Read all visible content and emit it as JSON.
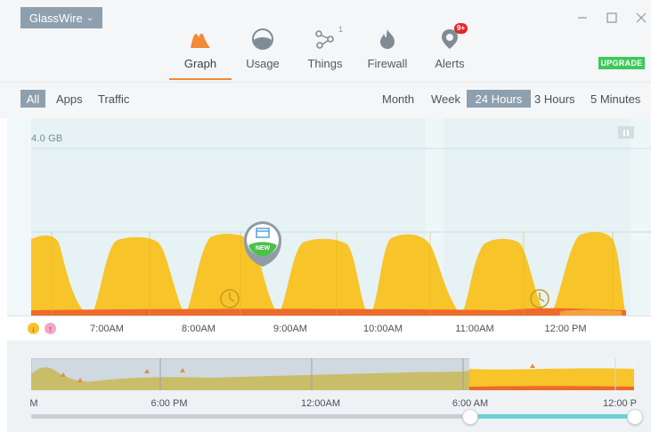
{
  "app": {
    "name": "GlassWire",
    "upgrade_label": "UPGRADE",
    "window_controls": {
      "minimize": "minimize-icon",
      "maximize": "maximize-icon",
      "close": "close-icon"
    }
  },
  "tabs": [
    {
      "label": "Graph",
      "icon": "graph-icon",
      "active": true
    },
    {
      "label": "Usage",
      "icon": "usage-icon",
      "active": false
    },
    {
      "label": "Things",
      "icon": "things-icon",
      "badge": "1",
      "active": false
    },
    {
      "label": "Firewall",
      "icon": "firewall-icon",
      "active": false
    },
    {
      "label": "Alerts",
      "icon": "alerts-icon",
      "badge": "9+",
      "active": false
    }
  ],
  "filters": {
    "view": [
      "All",
      "Apps",
      "Traffic"
    ],
    "view_selected": "All",
    "range": [
      "Month",
      "Week",
      "24 Hours",
      "3 Hours",
      "5 Minutes"
    ],
    "range_selected": "24 Hours"
  },
  "graph": {
    "scale_label": "4.0 GB",
    "new_marker_label": "NEW",
    "time_ticks": [
      "7:00AM",
      "8:00AM",
      "9:00AM",
      "10:00AM",
      "11:00AM",
      "12:00 PM"
    ]
  },
  "overview": {
    "time_ticks": [
      "M",
      "6:00 PM",
      "12:00AM",
      "6:00 AM",
      "12:00 P"
    ]
  },
  "colors": {
    "download": "#f7c42a",
    "upload": "#ee6a2a",
    "accent": "#f28a36",
    "selected_bg": "#8ea0ae",
    "upgrade": "#3dc85a",
    "range_bar": "#6fd0d8"
  }
}
